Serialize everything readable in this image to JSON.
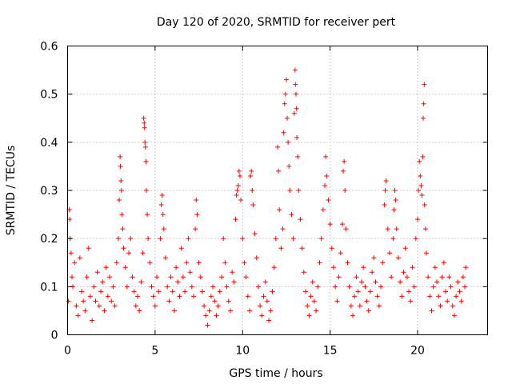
{
  "chart_data": {
    "type": "scatter",
    "title": "Day 120 of 2020, SRMTID for receiver pert",
    "xlabel": "GPS time / hours",
    "ylabel": "SRMTID / TECUs",
    "xlim": [
      0,
      24
    ],
    "ylim": [
      0,
      0.6
    ],
    "xticks": [
      0,
      5,
      10,
      15,
      20
    ],
    "yticks": [
      0,
      0.1,
      0.2,
      0.3,
      0.4,
      0.5,
      0.6
    ],
    "xtick_labels": [
      "0",
      "5",
      "10",
      "15",
      "20"
    ],
    "ytick_labels": [
      "0",
      "0.1",
      "0.2",
      "0.3",
      "0.4",
      "0.5",
      "0.6"
    ],
    "grid": true,
    "marker": "+",
    "color": "#ff0000",
    "series": [
      {
        "name": "SRMTID",
        "points": [
          [
            0.05,
            0.07
          ],
          [
            0.1,
            0.26
          ],
          [
            0.12,
            0.24
          ],
          [
            0.15,
            0.2
          ],
          [
            0.2,
            0.17
          ],
          [
            0.25,
            0.12
          ],
          [
            0.3,
            0.1
          ],
          [
            0.4,
            0.15
          ],
          [
            0.5,
            0.06
          ],
          [
            0.6,
            0.04
          ],
          [
            0.7,
            0.16
          ],
          [
            0.8,
            0.09
          ],
          [
            0.9,
            0.07
          ],
          [
            1.0,
            0.05
          ],
          [
            1.1,
            0.12
          ],
          [
            1.2,
            0.18
          ],
          [
            1.3,
            0.08
          ],
          [
            1.4,
            0.03
          ],
          [
            1.5,
            0.1
          ],
          [
            1.6,
            0.07
          ],
          [
            1.7,
            0.13
          ],
          [
            1.8,
            0.06
          ],
          [
            1.9,
            0.09
          ],
          [
            2.0,
            0.11
          ],
          [
            2.1,
            0.05
          ],
          [
            2.2,
            0.14
          ],
          [
            2.3,
            0.08
          ],
          [
            2.4,
            0.12
          ],
          [
            2.5,
            0.07
          ],
          [
            2.6,
            0.1
          ],
          [
            2.7,
            0.06
          ],
          [
            2.8,
            0.15
          ],
          [
            2.9,
            0.2
          ],
          [
            2.95,
            0.28
          ],
          [
            3.0,
            0.37
          ],
          [
            3.02,
            0.35
          ],
          [
            3.05,
            0.32
          ],
          [
            3.08,
            0.3
          ],
          [
            3.1,
            0.25
          ],
          [
            3.15,
            0.22
          ],
          [
            3.2,
            0.18
          ],
          [
            3.3,
            0.14
          ],
          [
            3.4,
            0.1
          ],
          [
            3.5,
            0.17
          ],
          [
            3.6,
            0.2
          ],
          [
            3.7,
            0.12
          ],
          [
            3.8,
            0.09
          ],
          [
            3.9,
            0.06
          ],
          [
            4.0,
            0.08
          ],
          [
            4.1,
            0.05
          ],
          [
            4.2,
            0.11
          ],
          [
            4.3,
            0.17
          ],
          [
            4.35,
            0.45
          ],
          [
            4.38,
            0.44
          ],
          [
            4.4,
            0.43
          ],
          [
            4.42,
            0.4
          ],
          [
            4.45,
            0.39
          ],
          [
            4.48,
            0.36
          ],
          [
            4.5,
            0.3
          ],
          [
            4.55,
            0.25
          ],
          [
            4.6,
            0.2
          ],
          [
            4.7,
            0.15
          ],
          [
            4.8,
            0.1
          ],
          [
            4.9,
            0.08
          ],
          [
            5.0,
            0.06
          ],
          [
            5.1,
            0.12
          ],
          [
            5.2,
            0.09
          ],
          [
            5.3,
            0.2
          ],
          [
            5.35,
            0.27
          ],
          [
            5.4,
            0.29
          ],
          [
            5.45,
            0.25
          ],
          [
            5.5,
            0.22
          ],
          [
            5.6,
            0.16
          ],
          [
            5.7,
            0.1
          ],
          [
            5.8,
            0.07
          ],
          [
            5.9,
            0.12
          ],
          [
            6.0,
            0.09
          ],
          [
            6.1,
            0.05
          ],
          [
            6.2,
            0.14
          ],
          [
            6.3,
            0.11
          ],
          [
            6.4,
            0.08
          ],
          [
            6.5,
            0.18
          ],
          [
            6.6,
            0.12
          ],
          [
            6.7,
            0.09
          ],
          [
            6.8,
            0.15
          ],
          [
            6.9,
            0.2
          ],
          [
            7.0,
            0.13
          ],
          [
            7.1,
            0.1
          ],
          [
            7.2,
            0.08
          ],
          [
            7.3,
            0.22
          ],
          [
            7.35,
            0.28
          ],
          [
            7.4,
            0.25
          ],
          [
            7.5,
            0.15
          ],
          [
            7.6,
            0.12
          ],
          [
            7.7,
            0.09
          ],
          [
            7.8,
            0.06
          ],
          [
            7.9,
            0.04
          ],
          [
            8.0,
            0.02
          ],
          [
            8.1,
            0.05
          ],
          [
            8.2,
            0.08
          ],
          [
            8.3,
            0.1
          ],
          [
            8.4,
            0.07
          ],
          [
            8.5,
            0.04
          ],
          [
            8.6,
            0.06
          ],
          [
            8.7,
            0.09
          ],
          [
            8.8,
            0.12
          ],
          [
            8.9,
            0.2
          ],
          [
            9.0,
            0.15
          ],
          [
            9.1,
            0.1
          ],
          [
            9.2,
            0.07
          ],
          [
            9.3,
            0.05
          ],
          [
            9.4,
            0.13
          ],
          [
            9.5,
            0.11
          ],
          [
            9.6,
            0.24
          ],
          [
            9.65,
            0.29
          ],
          [
            9.7,
            0.3
          ],
          [
            9.75,
            0.31
          ],
          [
            9.8,
            0.34
          ],
          [
            9.85,
            0.33
          ],
          [
            9.9,
            0.28
          ],
          [
            10.0,
            0.2
          ],
          [
            10.1,
            0.15
          ],
          [
            10.2,
            0.12
          ],
          [
            10.3,
            0.08
          ],
          [
            10.4,
            0.05
          ],
          [
            10.45,
            0.33
          ],
          [
            10.5,
            0.34
          ],
          [
            10.55,
            0.3
          ],
          [
            10.6,
            0.27
          ],
          [
            10.7,
            0.21
          ],
          [
            10.8,
            0.16
          ],
          [
            10.9,
            0.1
          ],
          [
            11.0,
            0.06
          ],
          [
            11.1,
            0.04
          ],
          [
            11.2,
            0.08
          ],
          [
            11.3,
            0.11
          ],
          [
            11.4,
            0.07
          ],
          [
            11.5,
            0.03
          ],
          [
            11.6,
            0.05
          ],
          [
            11.7,
            0.09
          ],
          [
            11.8,
            0.14
          ],
          [
            11.9,
            0.2
          ],
          [
            12.0,
            0.39
          ],
          [
            12.05,
            0.34
          ],
          [
            12.1,
            0.26
          ],
          [
            12.2,
            0.18
          ],
          [
            12.3,
            0.22
          ],
          [
            12.35,
            0.42
          ],
          [
            12.4,
            0.48
          ],
          [
            12.45,
            0.5
          ],
          [
            12.5,
            0.53
          ],
          [
            12.55,
            0.45
          ],
          [
            12.6,
            0.4
          ],
          [
            12.65,
            0.35
          ],
          [
            12.7,
            0.3
          ],
          [
            12.8,
            0.25
          ],
          [
            12.9,
            0.2
          ],
          [
            12.95,
            0.46
          ],
          [
            13.0,
            0.55
          ],
          [
            13.02,
            0.52
          ],
          [
            13.05,
            0.5
          ],
          [
            13.08,
            0.47
          ],
          [
            13.1,
            0.41
          ],
          [
            13.15,
            0.37
          ],
          [
            13.2,
            0.3
          ],
          [
            13.3,
            0.24
          ],
          [
            13.4,
            0.18
          ],
          [
            13.5,
            0.13
          ],
          [
            13.6,
            0.09
          ],
          [
            13.7,
            0.06
          ],
          [
            13.8,
            0.04
          ],
          [
            13.9,
            0.08
          ],
          [
            14.0,
            0.11
          ],
          [
            14.1,
            0.07
          ],
          [
            14.2,
            0.05
          ],
          [
            14.3,
            0.1
          ],
          [
            14.4,
            0.15
          ],
          [
            14.5,
            0.2
          ],
          [
            14.6,
            0.26
          ],
          [
            14.7,
            0.31
          ],
          [
            14.75,
            0.37
          ],
          [
            14.8,
            0.33
          ],
          [
            14.9,
            0.28
          ],
          [
            15.0,
            0.23
          ],
          [
            15.1,
            0.18
          ],
          [
            15.2,
            0.14
          ],
          [
            15.3,
            0.1
          ],
          [
            15.4,
            0.07
          ],
          [
            15.5,
            0.12
          ],
          [
            15.6,
            0.17
          ],
          [
            15.7,
            0.23
          ],
          [
            15.75,
            0.34
          ],
          [
            15.8,
            0.36
          ],
          [
            15.85,
            0.3
          ],
          [
            15.9,
            0.22
          ],
          [
            16.0,
            0.15
          ],
          [
            16.1,
            0.1
          ],
          [
            16.2,
            0.06
          ],
          [
            16.3,
            0.04
          ],
          [
            16.4,
            0.08
          ],
          [
            16.5,
            0.12
          ],
          [
            16.6,
            0.09
          ],
          [
            16.7,
            0.06
          ],
          [
            16.8,
            0.11
          ],
          [
            16.9,
            0.14
          ],
          [
            17.0,
            0.1
          ],
          [
            17.1,
            0.07
          ],
          [
            17.2,
            0.05
          ],
          [
            17.3,
            0.09
          ],
          [
            17.4,
            0.13
          ],
          [
            17.5,
            0.16
          ],
          [
            17.6,
            0.11
          ],
          [
            17.7,
            0.08
          ],
          [
            17.8,
            0.06
          ],
          [
            17.9,
            0.1
          ],
          [
            18.0,
            0.15
          ],
          [
            18.1,
            0.27
          ],
          [
            18.15,
            0.3
          ],
          [
            18.2,
            0.32
          ],
          [
            18.3,
            0.22
          ],
          [
            18.4,
            0.17
          ],
          [
            18.5,
            0.12
          ],
          [
            18.6,
            0.2
          ],
          [
            18.65,
            0.26
          ],
          [
            18.7,
            0.3
          ],
          [
            18.75,
            0.28
          ],
          [
            18.8,
            0.22
          ],
          [
            18.9,
            0.16
          ],
          [
            19.0,
            0.11
          ],
          [
            19.1,
            0.08
          ],
          [
            19.2,
            0.13
          ],
          [
            19.3,
            0.18
          ],
          [
            19.4,
            0.12
          ],
          [
            19.5,
            0.09
          ],
          [
            19.6,
            0.07
          ],
          [
            19.7,
            0.14
          ],
          [
            19.8,
            0.1
          ],
          [
            19.9,
            0.2
          ],
          [
            20.0,
            0.24
          ],
          [
            20.05,
            0.3
          ],
          [
            20.1,
            0.36
          ],
          [
            20.15,
            0.33
          ],
          [
            20.2,
            0.31
          ],
          [
            20.25,
            0.29
          ],
          [
            20.3,
            0.37
          ],
          [
            20.32,
            0.45
          ],
          [
            20.35,
            0.48
          ],
          [
            20.38,
            0.52
          ],
          [
            20.4,
            0.27
          ],
          [
            20.45,
            0.22
          ],
          [
            20.5,
            0.17
          ],
          [
            20.6,
            0.12
          ],
          [
            20.7,
            0.08
          ],
          [
            20.8,
            0.05
          ],
          [
            20.9,
            0.1
          ],
          [
            21.0,
            0.14
          ],
          [
            21.1,
            0.11
          ],
          [
            21.2,
            0.08
          ],
          [
            21.3,
            0.06
          ],
          [
            21.4,
            0.12
          ],
          [
            21.5,
            0.15
          ],
          [
            21.6,
            0.09
          ],
          [
            21.7,
            0.07
          ],
          [
            21.8,
            0.12
          ],
          [
            21.9,
            0.1
          ],
          [
            22.0,
            0.06
          ],
          [
            22.1,
            0.04
          ],
          [
            22.2,
            0.08
          ],
          [
            22.3,
            0.11
          ],
          [
            22.4,
            0.09
          ],
          [
            22.5,
            0.07
          ],
          [
            22.6,
            0.12
          ],
          [
            22.7,
            0.1
          ],
          [
            22.75,
            0.14
          ]
        ]
      }
    ]
  }
}
